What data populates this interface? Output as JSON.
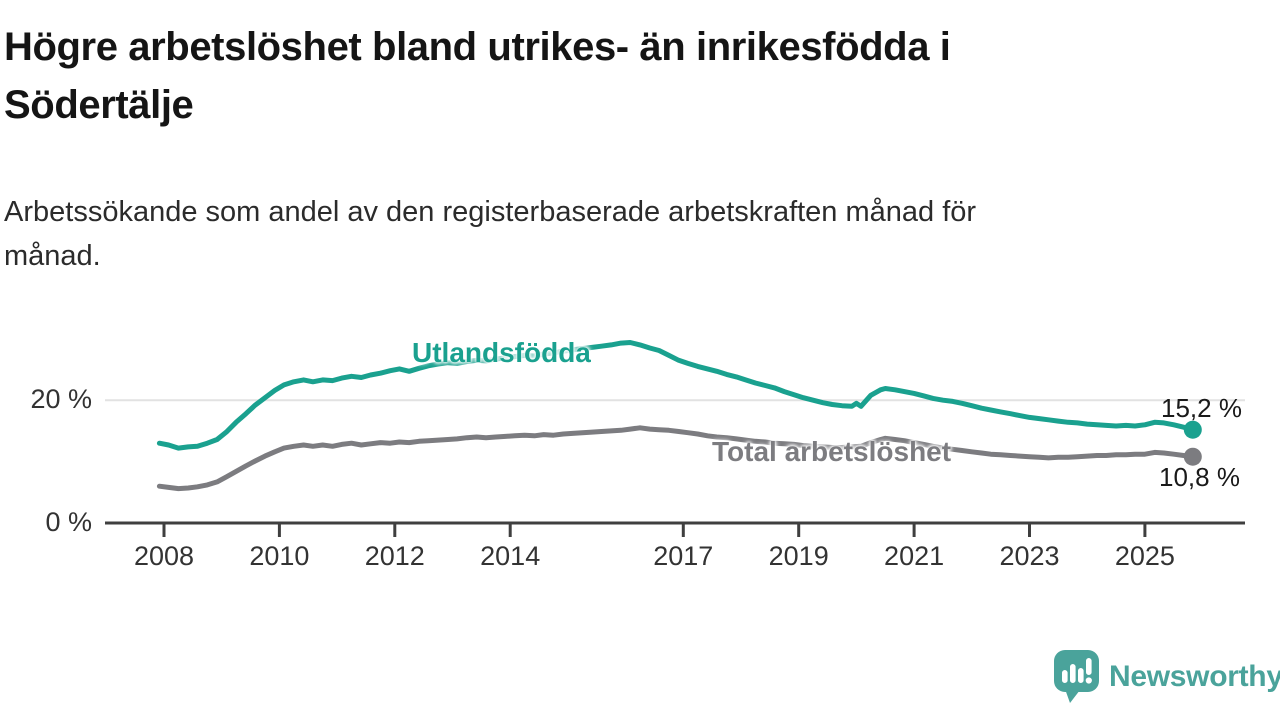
{
  "header": {
    "title": "Högre arbetslöshet bland utrikes- än inrikesfödda i Södertälje",
    "title_lines": [
      "Högre arbetslöshet bland utrikes- än inrikesfödda i",
      "Södertälje"
    ],
    "subtitle": "Arbetssökande som andel av den registerbaserade arbetskraften månad för månad.",
    "subtitle_lines": [
      "Arbetssökande som andel av den registerbaserade arbetskraften månad för",
      "månad."
    ]
  },
  "chart_data": {
    "type": "line",
    "title": "Högre arbetslöshet bland utrikes- än inrikesfödda i Södertälje",
    "subtitle": "Arbetssökande som andel av den registerbaserade arbetskraften månad för månad.",
    "grid": "horizontal-20pct-only",
    "legend": "inline-labels-on-lines",
    "x_axis": {
      "label": "",
      "range": [
        2007.6,
        2026.4
      ],
      "ticks": [
        {
          "v": 2008,
          "label": "2008"
        },
        {
          "v": 2010,
          "label": "2010"
        },
        {
          "v": 2012,
          "label": "2012"
        },
        {
          "v": 2014,
          "label": "2014"
        },
        {
          "v": 2017,
          "label": "2017"
        },
        {
          "v": 2019,
          "label": "2019"
        },
        {
          "v": 2021,
          "label": "2021"
        },
        {
          "v": 2023,
          "label": "2023"
        },
        {
          "v": 2025,
          "label": "2025"
        }
      ]
    },
    "y_axis": {
      "label": "",
      "unit": "%",
      "range": [
        0,
        33
      ],
      "ticks": [
        {
          "v": 0,
          "label": "0 %"
        },
        {
          "v": 20,
          "label": "20 %"
        }
      ]
    },
    "series": [
      {
        "name": "Utlandsfödda",
        "color": "#1aa18f",
        "end_value": 15.2,
        "end_label": "15,2 %",
        "points": [
          [
            2007.92,
            13.0
          ],
          [
            2008.08,
            12.7
          ],
          [
            2008.25,
            12.2
          ],
          [
            2008.42,
            12.4
          ],
          [
            2008.58,
            12.5
          ],
          [
            2008.75,
            13.0
          ],
          [
            2008.92,
            13.6
          ],
          [
            2009.08,
            14.8
          ],
          [
            2009.25,
            16.4
          ],
          [
            2009.42,
            17.8
          ],
          [
            2009.58,
            19.2
          ],
          [
            2009.75,
            20.4
          ],
          [
            2009.92,
            21.6
          ],
          [
            2010.08,
            22.5
          ],
          [
            2010.25,
            23.0
          ],
          [
            2010.42,
            23.3
          ],
          [
            2010.58,
            23.0
          ],
          [
            2010.75,
            23.3
          ],
          [
            2010.92,
            23.2
          ],
          [
            2011.08,
            23.6
          ],
          [
            2011.25,
            23.9
          ],
          [
            2011.42,
            23.7
          ],
          [
            2011.58,
            24.1
          ],
          [
            2011.75,
            24.4
          ],
          [
            2011.92,
            24.8
          ],
          [
            2012.08,
            25.1
          ],
          [
            2012.25,
            24.7
          ],
          [
            2012.42,
            25.2
          ],
          [
            2012.58,
            25.6
          ],
          [
            2012.75,
            25.9
          ],
          [
            2012.92,
            26.1
          ],
          [
            2013.08,
            26.0
          ],
          [
            2013.25,
            26.3
          ],
          [
            2013.42,
            26.5
          ],
          [
            2013.58,
            26.4
          ],
          [
            2013.75,
            26.7
          ],
          [
            2013.92,
            26.9
          ],
          [
            2014.08,
            27.1
          ],
          [
            2014.25,
            27.3
          ],
          [
            2014.42,
            27.2
          ],
          [
            2014.58,
            27.5
          ],
          [
            2014.75,
            27.7
          ],
          [
            2014.92,
            28.0
          ],
          [
            2015.08,
            28.2
          ],
          [
            2015.25,
            28.4
          ],
          [
            2015.42,
            28.6
          ],
          [
            2015.58,
            28.8
          ],
          [
            2015.75,
            29.0
          ],
          [
            2015.92,
            29.3
          ],
          [
            2016.08,
            29.4
          ],
          [
            2016.25,
            29.0
          ],
          [
            2016.42,
            28.5
          ],
          [
            2016.58,
            28.1
          ],
          [
            2016.75,
            27.3
          ],
          [
            2016.92,
            26.5
          ],
          [
            2017.08,
            26.0
          ],
          [
            2017.25,
            25.5
          ],
          [
            2017.42,
            25.1
          ],
          [
            2017.58,
            24.7
          ],
          [
            2017.75,
            24.2
          ],
          [
            2017.92,
            23.8
          ],
          [
            2018.08,
            23.3
          ],
          [
            2018.25,
            22.8
          ],
          [
            2018.42,
            22.4
          ],
          [
            2018.58,
            22.0
          ],
          [
            2018.75,
            21.4
          ],
          [
            2018.92,
            20.9
          ],
          [
            2019.08,
            20.4
          ],
          [
            2019.25,
            20.0
          ],
          [
            2019.42,
            19.6
          ],
          [
            2019.58,
            19.3
          ],
          [
            2019.75,
            19.1
          ],
          [
            2019.92,
            19.0
          ],
          [
            2020.0,
            19.5
          ],
          [
            2020.08,
            19.0
          ],
          [
            2020.25,
            20.8
          ],
          [
            2020.42,
            21.7
          ],
          [
            2020.5,
            21.9
          ],
          [
            2020.67,
            21.7
          ],
          [
            2020.83,
            21.4
          ],
          [
            2021.0,
            21.1
          ],
          [
            2021.17,
            20.7
          ],
          [
            2021.33,
            20.3
          ],
          [
            2021.5,
            20.0
          ],
          [
            2021.67,
            19.8
          ],
          [
            2021.83,
            19.5
          ],
          [
            2022.0,
            19.1
          ],
          [
            2022.17,
            18.7
          ],
          [
            2022.33,
            18.4
          ],
          [
            2022.5,
            18.1
          ],
          [
            2022.67,
            17.8
          ],
          [
            2022.83,
            17.5
          ],
          [
            2023.0,
            17.2
          ],
          [
            2023.17,
            17.0
          ],
          [
            2023.33,
            16.8
          ],
          [
            2023.5,
            16.6
          ],
          [
            2023.67,
            16.4
          ],
          [
            2023.83,
            16.3
          ],
          [
            2024.0,
            16.1
          ],
          [
            2024.17,
            16.0
          ],
          [
            2024.33,
            15.9
          ],
          [
            2024.5,
            15.8
          ],
          [
            2024.67,
            15.9
          ],
          [
            2024.83,
            15.8
          ],
          [
            2025.0,
            16.0
          ],
          [
            2025.17,
            16.4
          ],
          [
            2025.33,
            16.3
          ],
          [
            2025.5,
            16.0
          ],
          [
            2025.67,
            15.6
          ],
          [
            2025.83,
            15.2
          ]
        ]
      },
      {
        "name": "Total arbetslöshet",
        "color": "#7c7c80",
        "end_value": 10.8,
        "end_label": "10,8 %",
        "points": [
          [
            2007.92,
            6.0
          ],
          [
            2008.08,
            5.8
          ],
          [
            2008.25,
            5.6
          ],
          [
            2008.42,
            5.7
          ],
          [
            2008.58,
            5.9
          ],
          [
            2008.75,
            6.2
          ],
          [
            2008.92,
            6.7
          ],
          [
            2009.08,
            7.5
          ],
          [
            2009.25,
            8.4
          ],
          [
            2009.42,
            9.3
          ],
          [
            2009.58,
            10.1
          ],
          [
            2009.75,
            10.9
          ],
          [
            2009.92,
            11.6
          ],
          [
            2010.08,
            12.2
          ],
          [
            2010.25,
            12.5
          ],
          [
            2010.42,
            12.7
          ],
          [
            2010.58,
            12.5
          ],
          [
            2010.75,
            12.7
          ],
          [
            2010.92,
            12.5
          ],
          [
            2011.08,
            12.8
          ],
          [
            2011.25,
            13.0
          ],
          [
            2011.42,
            12.7
          ],
          [
            2011.58,
            12.9
          ],
          [
            2011.75,
            13.1
          ],
          [
            2011.92,
            13.0
          ],
          [
            2012.08,
            13.2
          ],
          [
            2012.25,
            13.1
          ],
          [
            2012.42,
            13.3
          ],
          [
            2012.58,
            13.4
          ],
          [
            2012.75,
            13.5
          ],
          [
            2012.92,
            13.6
          ],
          [
            2013.08,
            13.7
          ],
          [
            2013.25,
            13.9
          ],
          [
            2013.42,
            14.0
          ],
          [
            2013.58,
            13.9
          ],
          [
            2013.75,
            14.0
          ],
          [
            2013.92,
            14.1
          ],
          [
            2014.08,
            14.2
          ],
          [
            2014.25,
            14.3
          ],
          [
            2014.42,
            14.2
          ],
          [
            2014.58,
            14.4
          ],
          [
            2014.75,
            14.3
          ],
          [
            2014.92,
            14.5
          ],
          [
            2015.08,
            14.6
          ],
          [
            2015.25,
            14.7
          ],
          [
            2015.42,
            14.8
          ],
          [
            2015.58,
            14.9
          ],
          [
            2015.75,
            15.0
          ],
          [
            2015.92,
            15.1
          ],
          [
            2016.08,
            15.3
          ],
          [
            2016.25,
            15.5
          ],
          [
            2016.42,
            15.3
          ],
          [
            2016.58,
            15.2
          ],
          [
            2016.75,
            15.1
          ],
          [
            2016.92,
            14.9
          ],
          [
            2017.08,
            14.7
          ],
          [
            2017.25,
            14.5
          ],
          [
            2017.42,
            14.2
          ],
          [
            2017.58,
            14.0
          ],
          [
            2017.75,
            13.9
          ],
          [
            2017.92,
            13.7
          ],
          [
            2018.08,
            13.5
          ],
          [
            2018.25,
            13.3
          ],
          [
            2018.42,
            13.2
          ],
          [
            2018.58,
            13.0
          ],
          [
            2018.75,
            12.9
          ],
          [
            2018.92,
            12.8
          ],
          [
            2019.08,
            12.6
          ],
          [
            2019.25,
            12.5
          ],
          [
            2019.42,
            12.4
          ],
          [
            2019.58,
            12.3
          ],
          [
            2019.75,
            12.3
          ],
          [
            2019.92,
            12.4
          ],
          [
            2020.08,
            12.5
          ],
          [
            2020.25,
            13.1
          ],
          [
            2020.42,
            13.6
          ],
          [
            2020.5,
            13.8
          ],
          [
            2020.67,
            13.6
          ],
          [
            2020.83,
            13.4
          ],
          [
            2021.0,
            13.1
          ],
          [
            2021.17,
            12.8
          ],
          [
            2021.33,
            12.5
          ],
          [
            2021.5,
            12.2
          ],
          [
            2021.67,
            12.0
          ],
          [
            2021.83,
            11.8
          ],
          [
            2022.0,
            11.6
          ],
          [
            2022.17,
            11.4
          ],
          [
            2022.33,
            11.2
          ],
          [
            2022.5,
            11.1
          ],
          [
            2022.67,
            11.0
          ],
          [
            2022.83,
            10.9
          ],
          [
            2023.0,
            10.8
          ],
          [
            2023.17,
            10.7
          ],
          [
            2023.33,
            10.6
          ],
          [
            2023.5,
            10.7
          ],
          [
            2023.67,
            10.7
          ],
          [
            2023.83,
            10.8
          ],
          [
            2024.0,
            10.9
          ],
          [
            2024.17,
            11.0
          ],
          [
            2024.33,
            11.0
          ],
          [
            2024.5,
            11.1
          ],
          [
            2024.67,
            11.1
          ],
          [
            2024.83,
            11.2
          ],
          [
            2025.0,
            11.2
          ],
          [
            2025.17,
            11.5
          ],
          [
            2025.33,
            11.4
          ],
          [
            2025.5,
            11.2
          ],
          [
            2025.67,
            11.0
          ],
          [
            2025.83,
            10.8
          ]
        ]
      }
    ]
  },
  "footer": {
    "brand": "Newsworthy",
    "logo_icon": "newsworthy-speech-bubble-bar-chart-icon"
  },
  "colors": {
    "accent_teal": "#1aa18f",
    "series_gray": "#7c7c80",
    "logo_teal": "#4aa39b",
    "axis": "#3f3f3f",
    "gridline": "#e2e2e2",
    "title_text": "#151515",
    "background": "#ffffff"
  }
}
